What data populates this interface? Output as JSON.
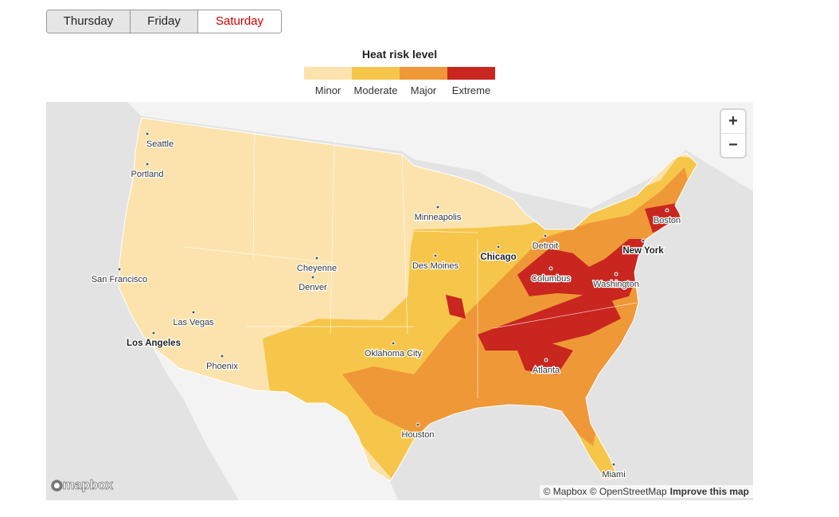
{
  "tabs": [
    "Thursday",
    "Friday",
    "Saturday"
  ],
  "legend": {
    "title": "Heat risk level",
    "levels": [
      {
        "label": "Minor",
        "color": "#fce3ad"
      },
      {
        "label": "Moderate",
        "color": "#f6c64a"
      },
      {
        "label": "Major",
        "color": "#ef9837"
      },
      {
        "label": "Extreme",
        "color": "#c9261f"
      }
    ]
  },
  "map": {
    "cities": [
      "Seattle",
      "Portland",
      "San Francisco",
      "Las Vegas",
      "Los Angeles",
      "Phoenix",
      "Cheyenne",
      "Denver",
      "Minneapolis",
      "Des Moines",
      "Chicago",
      "Detroit",
      "Columbus",
      "Washington",
      "New York",
      "Boston",
      "Oklahoma City",
      "Atlanta",
      "Houston",
      "Miami"
    ],
    "zoom": [
      "+",
      "−"
    ],
    "logo": "mapbox",
    "attribution": "© Mapbox © OpenStreetMap",
    "improve": "Improve this map"
  }
}
